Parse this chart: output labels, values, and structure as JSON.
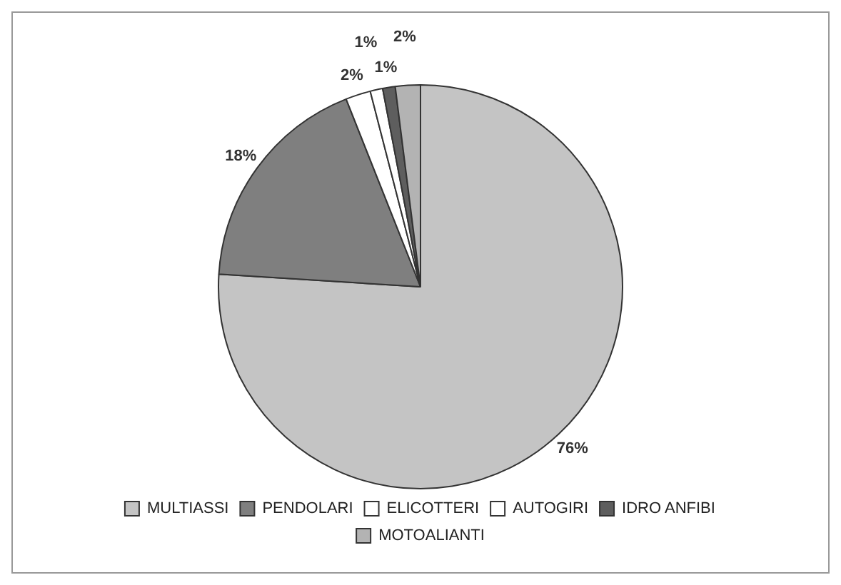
{
  "chart_data": {
    "type": "pie",
    "categories": [
      "MULTIASSI",
      "PENDOLARI",
      "ELICOTTERI",
      "AUTOGIRI",
      "IDRO ANFIBI",
      "MOTOALIANTI"
    ],
    "values": [
      76,
      18,
      2,
      1,
      1,
      2
    ],
    "colors": [
      "#c4c4c4",
      "#7f7f7f",
      "#ffffff",
      "#ffffff",
      "#5e5e5e",
      "#b3b3b3"
    ],
    "value_labels": [
      "76%",
      "18%",
      "2%",
      "1%",
      "1%",
      "2%"
    ],
    "legend": "bottom"
  }
}
